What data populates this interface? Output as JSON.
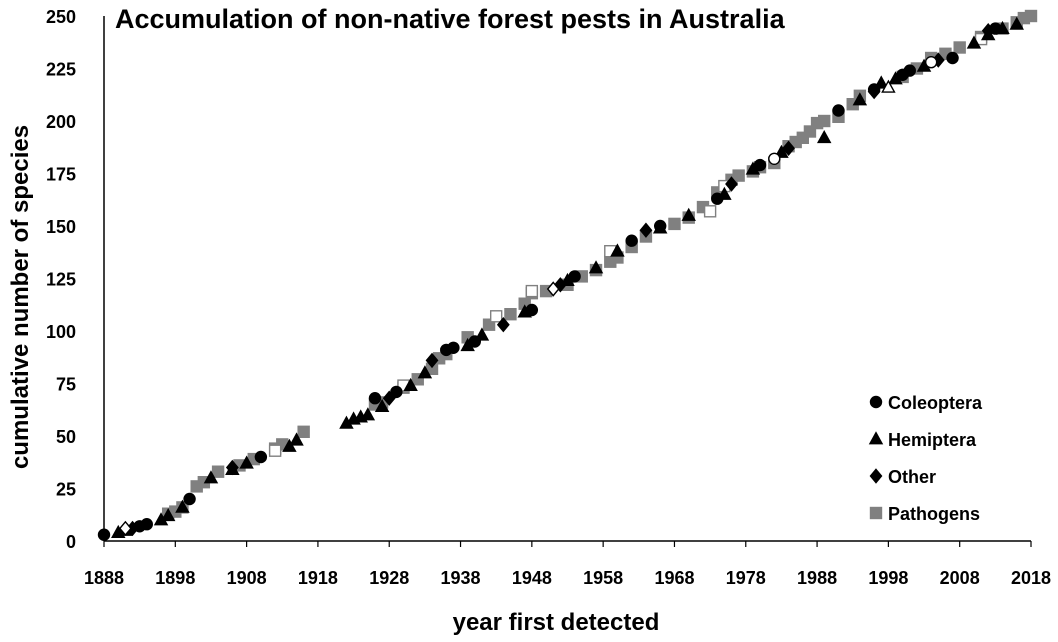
{
  "chart_data": {
    "type": "scatter",
    "title": "Accumulation of non-native forest pests in Australia",
    "xlabel": "year first detected",
    "ylabel": "cumulative number of species",
    "xlim": [
      1888,
      2018
    ],
    "ylim": [
      0,
      250
    ],
    "x_ticks": [
      1888,
      1898,
      1908,
      1918,
      1928,
      1938,
      1948,
      1958,
      1968,
      1978,
      1988,
      1998,
      2008,
      2018
    ],
    "y_ticks": [
      0,
      25,
      50,
      75,
      100,
      125,
      150,
      175,
      200,
      225,
      250
    ],
    "grid": false,
    "legend_position": "bottom-right",
    "colors": {
      "black": "#000000",
      "gray": "#808080"
    },
    "series": [
      {
        "name": "Coleoptera",
        "marker": "circle",
        "color": "#000000",
        "points": [
          [
            1888,
            3
          ],
          [
            1893,
            7
          ],
          [
            1894,
            8
          ],
          [
            1900,
            20
          ],
          [
            1910,
            40
          ],
          [
            1926,
            68
          ],
          [
            1929,
            71
          ],
          [
            1936,
            91
          ],
          [
            1937,
            92
          ],
          [
            1940,
            95
          ],
          [
            1948,
            110
          ],
          [
            1954,
            126
          ],
          [
            1962,
            143
          ],
          [
            1966,
            150
          ],
          [
            1974,
            163
          ],
          [
            1980,
            179
          ],
          [
            1991,
            205
          ],
          [
            1996,
            215
          ],
          [
            2000,
            222
          ],
          [
            2001,
            224
          ],
          [
            2007,
            230
          ],
          [
            2013,
            244
          ]
        ],
        "open_points": [
          [
            1982,
            182
          ],
          [
            2004,
            228
          ]
        ]
      },
      {
        "name": "Hemiptera",
        "marker": "triangle",
        "color": "#000000",
        "points": [
          [
            1890,
            4
          ],
          [
            1891,
            5
          ],
          [
            1896,
            10
          ],
          [
            1897,
            12
          ],
          [
            1899,
            16
          ],
          [
            1903,
            30
          ],
          [
            1906,
            34
          ],
          [
            1908,
            37
          ],
          [
            1914,
            45
          ],
          [
            1915,
            48
          ],
          [
            1922,
            56
          ],
          [
            1923,
            58
          ],
          [
            1924,
            59
          ],
          [
            1925,
            60
          ],
          [
            1927,
            64
          ],
          [
            1931,
            74
          ],
          [
            1933,
            80
          ],
          [
            1939,
            93
          ],
          [
            1941,
            98
          ],
          [
            1947,
            109
          ],
          [
            1953,
            124
          ],
          [
            1957,
            130
          ],
          [
            1960,
            138
          ],
          [
            1966,
            149
          ],
          [
            1970,
            155
          ],
          [
            1975,
            165
          ],
          [
            1979,
            177
          ],
          [
            1983,
            185
          ],
          [
            1989,
            192
          ],
          [
            1994,
            210
          ],
          [
            1997,
            218
          ],
          [
            1999,
            220
          ],
          [
            2003,
            226
          ],
          [
            2010,
            237
          ],
          [
            2012,
            241
          ],
          [
            2014,
            244
          ],
          [
            2016,
            246
          ]
        ],
        "open_points": [
          [
            1998,
            216
          ]
        ]
      },
      {
        "name": "Other",
        "marker": "diamond",
        "color": "#000000",
        "points": [
          [
            1892,
            6
          ],
          [
            1906,
            35
          ],
          [
            1928,
            68
          ],
          [
            1934,
            86
          ],
          [
            1944,
            103
          ],
          [
            1952,
            122
          ],
          [
            1964,
            148
          ],
          [
            1976,
            170
          ],
          [
            1984,
            187
          ],
          [
            1996,
            214
          ],
          [
            2005,
            229
          ],
          [
            2012,
            243
          ]
        ],
        "open_points": [
          [
            1891,
            6
          ],
          [
            1951,
            120
          ]
        ]
      },
      {
        "name": "Pathogens",
        "marker": "square",
        "color": "#808080",
        "points": [
          [
            1897,
            13
          ],
          [
            1898,
            14
          ],
          [
            1899,
            16
          ],
          [
            1901,
            26
          ],
          [
            1902,
            28
          ],
          [
            1904,
            33
          ],
          [
            1907,
            36
          ],
          [
            1909,
            39
          ],
          [
            1912,
            44
          ],
          [
            1913,
            46
          ],
          [
            1916,
            52
          ],
          [
            1926,
            65
          ],
          [
            1927,
            66
          ],
          [
            1930,
            73
          ],
          [
            1932,
            77
          ],
          [
            1934,
            82
          ],
          [
            1935,
            87
          ],
          [
            1936,
            89
          ],
          [
            1939,
            97
          ],
          [
            1942,
            103
          ],
          [
            1945,
            108
          ],
          [
            1947,
            113
          ],
          [
            1948,
            118
          ],
          [
            1950,
            119
          ],
          [
            1953,
            122
          ],
          [
            1955,
            126
          ],
          [
            1957,
            129
          ],
          [
            1959,
            133
          ],
          [
            1960,
            135
          ],
          [
            1962,
            140
          ],
          [
            1964,
            145
          ],
          [
            1968,
            151
          ],
          [
            1970,
            154
          ],
          [
            1972,
            159
          ],
          [
            1974,
            166
          ],
          [
            1976,
            172
          ],
          [
            1977,
            174
          ],
          [
            1979,
            176
          ],
          [
            1980,
            178
          ],
          [
            1982,
            180
          ],
          [
            1984,
            188
          ],
          [
            1985,
            190
          ],
          [
            1986,
            192
          ],
          [
            1987,
            195
          ],
          [
            1988,
            199
          ],
          [
            1989,
            200
          ],
          [
            1991,
            202
          ],
          [
            1993,
            208
          ],
          [
            1994,
            212
          ],
          [
            2000,
            221
          ],
          [
            2002,
            225
          ],
          [
            2004,
            230
          ],
          [
            2006,
            232
          ],
          [
            2008,
            235
          ],
          [
            2011,
            240
          ],
          [
            2014,
            244
          ],
          [
            2016,
            247
          ],
          [
            2017,
            249
          ],
          [
            2018,
            250
          ]
        ],
        "open_points": [
          [
            1912,
            43
          ],
          [
            1930,
            74
          ],
          [
            1943,
            107
          ],
          [
            1948,
            119
          ],
          [
            1959,
            138
          ],
          [
            1973,
            157
          ],
          [
            1975,
            169
          ],
          [
            2011,
            239
          ]
        ]
      }
    ]
  }
}
